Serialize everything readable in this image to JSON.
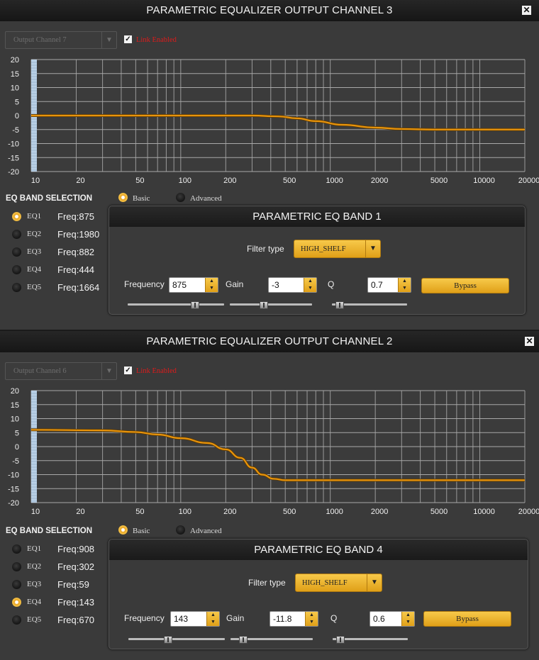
{
  "panels": [
    {
      "title": "PARAMETRIC EQUALIZER OUTPUT CHANNEL 3",
      "close_icon": "✕",
      "channel_select": {
        "value": "Output Channel 7",
        "arrow": "▼"
      },
      "link_enabled": {
        "checked": true,
        "label": "Link Enabled",
        "mark": "✓"
      },
      "graph": {
        "y_ticks": [
          20,
          15,
          10,
          5,
          0,
          -5,
          -10,
          -15,
          -20
        ],
        "x_ticks": [
          10,
          20,
          50,
          100,
          200,
          500,
          1000,
          2000,
          5000,
          10000,
          20000
        ],
        "x_range": [
          10,
          20000
        ],
        "y_range": [
          -20,
          20
        ],
        "curve": [
          [
            10,
            0
          ],
          [
            100,
            0
          ],
          [
            300,
            0
          ],
          [
            450,
            -0.3
          ],
          [
            600,
            -1
          ],
          [
            800,
            -2
          ],
          [
            1200,
            -3.3
          ],
          [
            2000,
            -4.3
          ],
          [
            3000,
            -4.8
          ],
          [
            5000,
            -5
          ],
          [
            20000,
            -5
          ]
        ],
        "curve_color": "#e8940c"
      },
      "eq_band_selection_label": "EQ BAND SELECTION",
      "modes": [
        {
          "label": "Basic",
          "selected": true
        },
        {
          "label": "Advanced",
          "selected": false
        }
      ],
      "bands": [
        {
          "label": "EQ1",
          "freq": "Freq:875",
          "selected": true
        },
        {
          "label": "EQ2",
          "freq": "Freq:1980",
          "selected": false
        },
        {
          "label": "EQ3",
          "freq": "Freq:882",
          "selected": false
        },
        {
          "label": "EQ4",
          "freq": "Freq:444",
          "selected": false
        },
        {
          "label": "EQ5",
          "freq": "Freq:1664",
          "selected": false
        }
      ],
      "band_panel": {
        "title": "PARAMETRIC EQ BAND 1",
        "filter_type_label": "Filter type",
        "filter_type": "HIGH_SHELF",
        "frequency_label": "Frequency",
        "frequency": "875",
        "gain_label": "Gain",
        "gain": "-3",
        "q_label": "Q",
        "q": "0.7",
        "bypass_label": "Bypass",
        "sliders": {
          "frequency": 0.72,
          "gain": 0.4,
          "q": 0.05
        }
      }
    },
    {
      "title": "PARAMETRIC EQUALIZER OUTPUT CHANNEL 2",
      "close_icon": "✕",
      "channel_select": {
        "value": "Output Channel 6",
        "arrow": "▼"
      },
      "link_enabled": {
        "checked": true,
        "label": "Link Enabled",
        "mark": "✓"
      },
      "graph": {
        "y_ticks": [
          20,
          15,
          10,
          5,
          0,
          -5,
          -10,
          -15,
          -20
        ],
        "x_ticks": [
          10,
          20,
          50,
          100,
          200,
          500,
          1000,
          2000,
          5000,
          10000,
          20000
        ],
        "x_range": [
          10,
          20000
        ],
        "y_range": [
          -20,
          20
        ],
        "curve": [
          [
            10,
            6
          ],
          [
            30,
            5.8
          ],
          [
            50,
            5.2
          ],
          [
            70,
            4.3
          ],
          [
            100,
            3
          ],
          [
            150,
            1.3
          ],
          [
            200,
            -1
          ],
          [
            250,
            -4
          ],
          [
            300,
            -7.5
          ],
          [
            350,
            -10
          ],
          [
            420,
            -11.5
          ],
          [
            500,
            -12
          ],
          [
            1000,
            -12
          ],
          [
            20000,
            -12
          ]
        ],
        "curve_color": "#e8940c"
      },
      "eq_band_selection_label": "EQ BAND SELECTION",
      "modes": [
        {
          "label": "Basic",
          "selected": true
        },
        {
          "label": "Advanced",
          "selected": false
        }
      ],
      "bands": [
        {
          "label": "EQ1",
          "freq": "Freq:908",
          "selected": false
        },
        {
          "label": "EQ2",
          "freq": "Freq:302",
          "selected": false
        },
        {
          "label": "EQ3",
          "freq": "Freq:59",
          "selected": false
        },
        {
          "label": "EQ4",
          "freq": "Freq:143",
          "selected": true
        },
        {
          "label": "EQ5",
          "freq": "Freq:670",
          "selected": false
        }
      ],
      "band_panel": {
        "title": "PARAMETRIC EQ BAND 4",
        "filter_type_label": "Filter type",
        "filter_type": "HIGH_SHELF",
        "frequency_label": "Frequency",
        "frequency": "143",
        "gain_label": "Gain",
        "gain": "-11.8",
        "q_label": "Q",
        "q": "0.6",
        "bypass_label": "Bypass",
        "sliders": {
          "frequency": 0.4,
          "gain": 0.12,
          "q": 0.05
        }
      }
    }
  ],
  "spin_arrows": {
    "up": "▲",
    "down": "▼"
  }
}
